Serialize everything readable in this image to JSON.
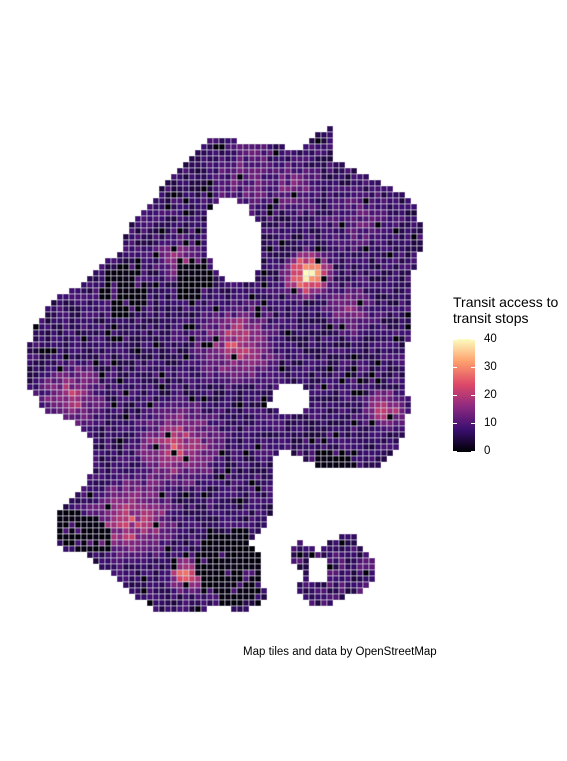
{
  "legend": {
    "title_line1": "Transit access to",
    "title_line2": "transit stops",
    "ticks": [
      "0",
      "10",
      "20",
      "30",
      "40"
    ],
    "min": 0,
    "max": 40
  },
  "attribution": "Map tiles and data by OpenStreetMap",
  "colors": {
    "background": "#ffffff",
    "cell_border": "#d9d9e3",
    "scale": [
      "#000004",
      "#3b0f70",
      "#8c2981",
      "#de4968",
      "#fe9f6d",
      "#fcfdbf"
    ]
  }
}
